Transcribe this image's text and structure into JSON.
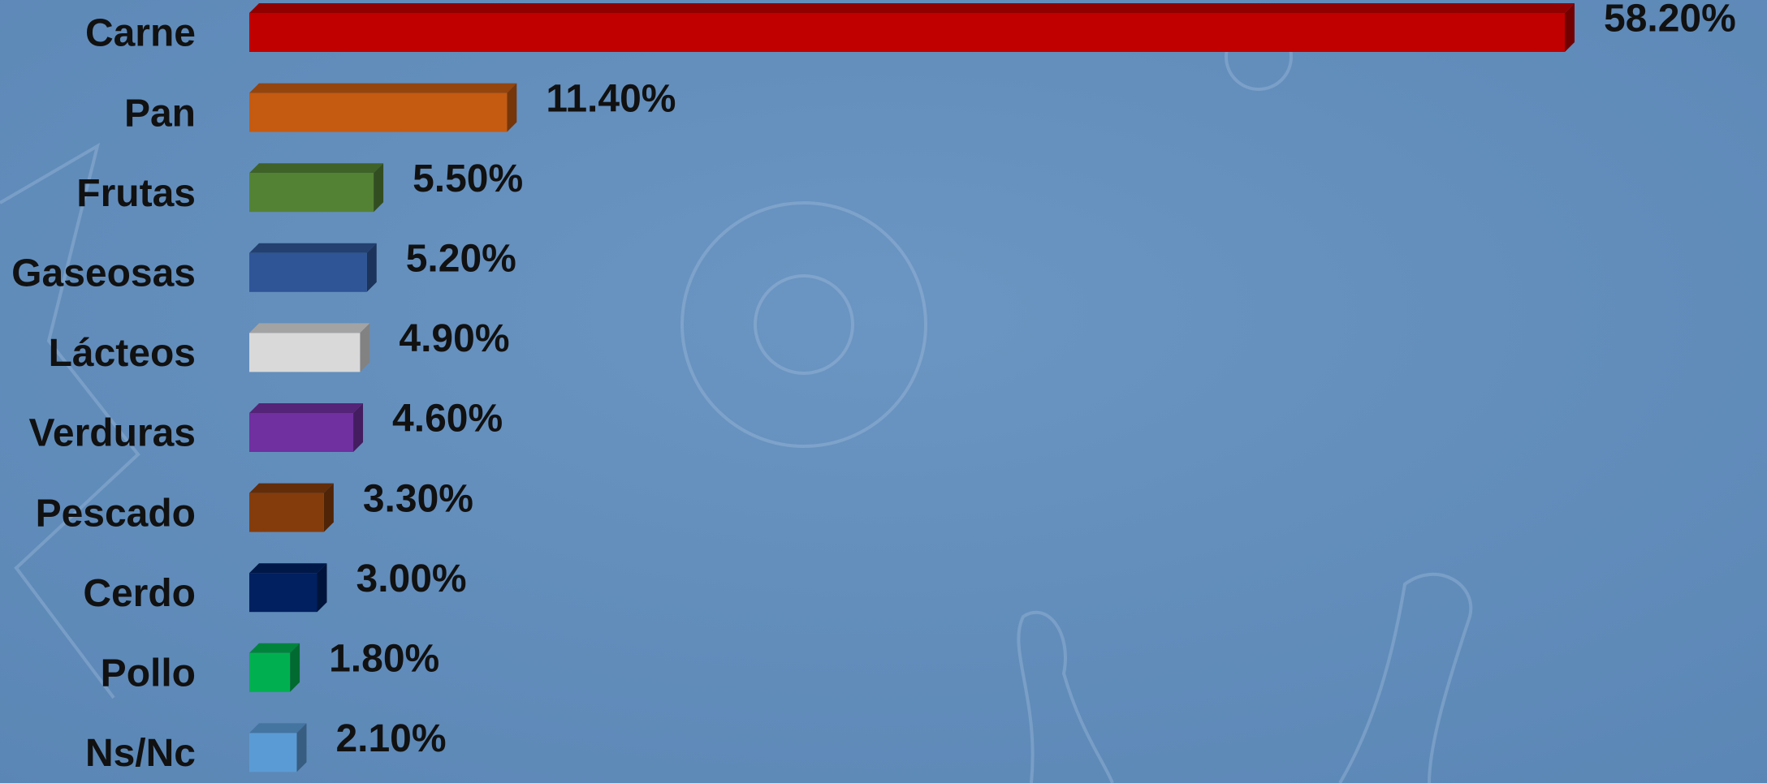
{
  "chart_data": {
    "type": "bar",
    "orientation": "horizontal",
    "categories": [
      "Carne",
      "Pan",
      "Frutas",
      "Gaseosas",
      "Lácteos",
      "Verduras",
      "Pescado",
      "Cerdo",
      "Pollo",
      "Ns/Nc"
    ],
    "values": [
      58.2,
      11.4,
      5.5,
      5.2,
      4.9,
      4.6,
      3.3,
      3.0,
      1.8,
      2.1
    ],
    "value_labels": [
      "58.20%",
      "11.40%",
      "5.50%",
      "5.20%",
      "4.90%",
      "4.60%",
      "3.30%",
      "3.00%",
      "1.80%",
      "2.10%"
    ],
    "colors": [
      "#c00000",
      "#c55a11",
      "#548235",
      "#2f5597",
      "#d9d9d9",
      "#7030a0",
      "#843c0c",
      "#002060",
      "#00b050",
      "#5b9bd5"
    ]
  }
}
